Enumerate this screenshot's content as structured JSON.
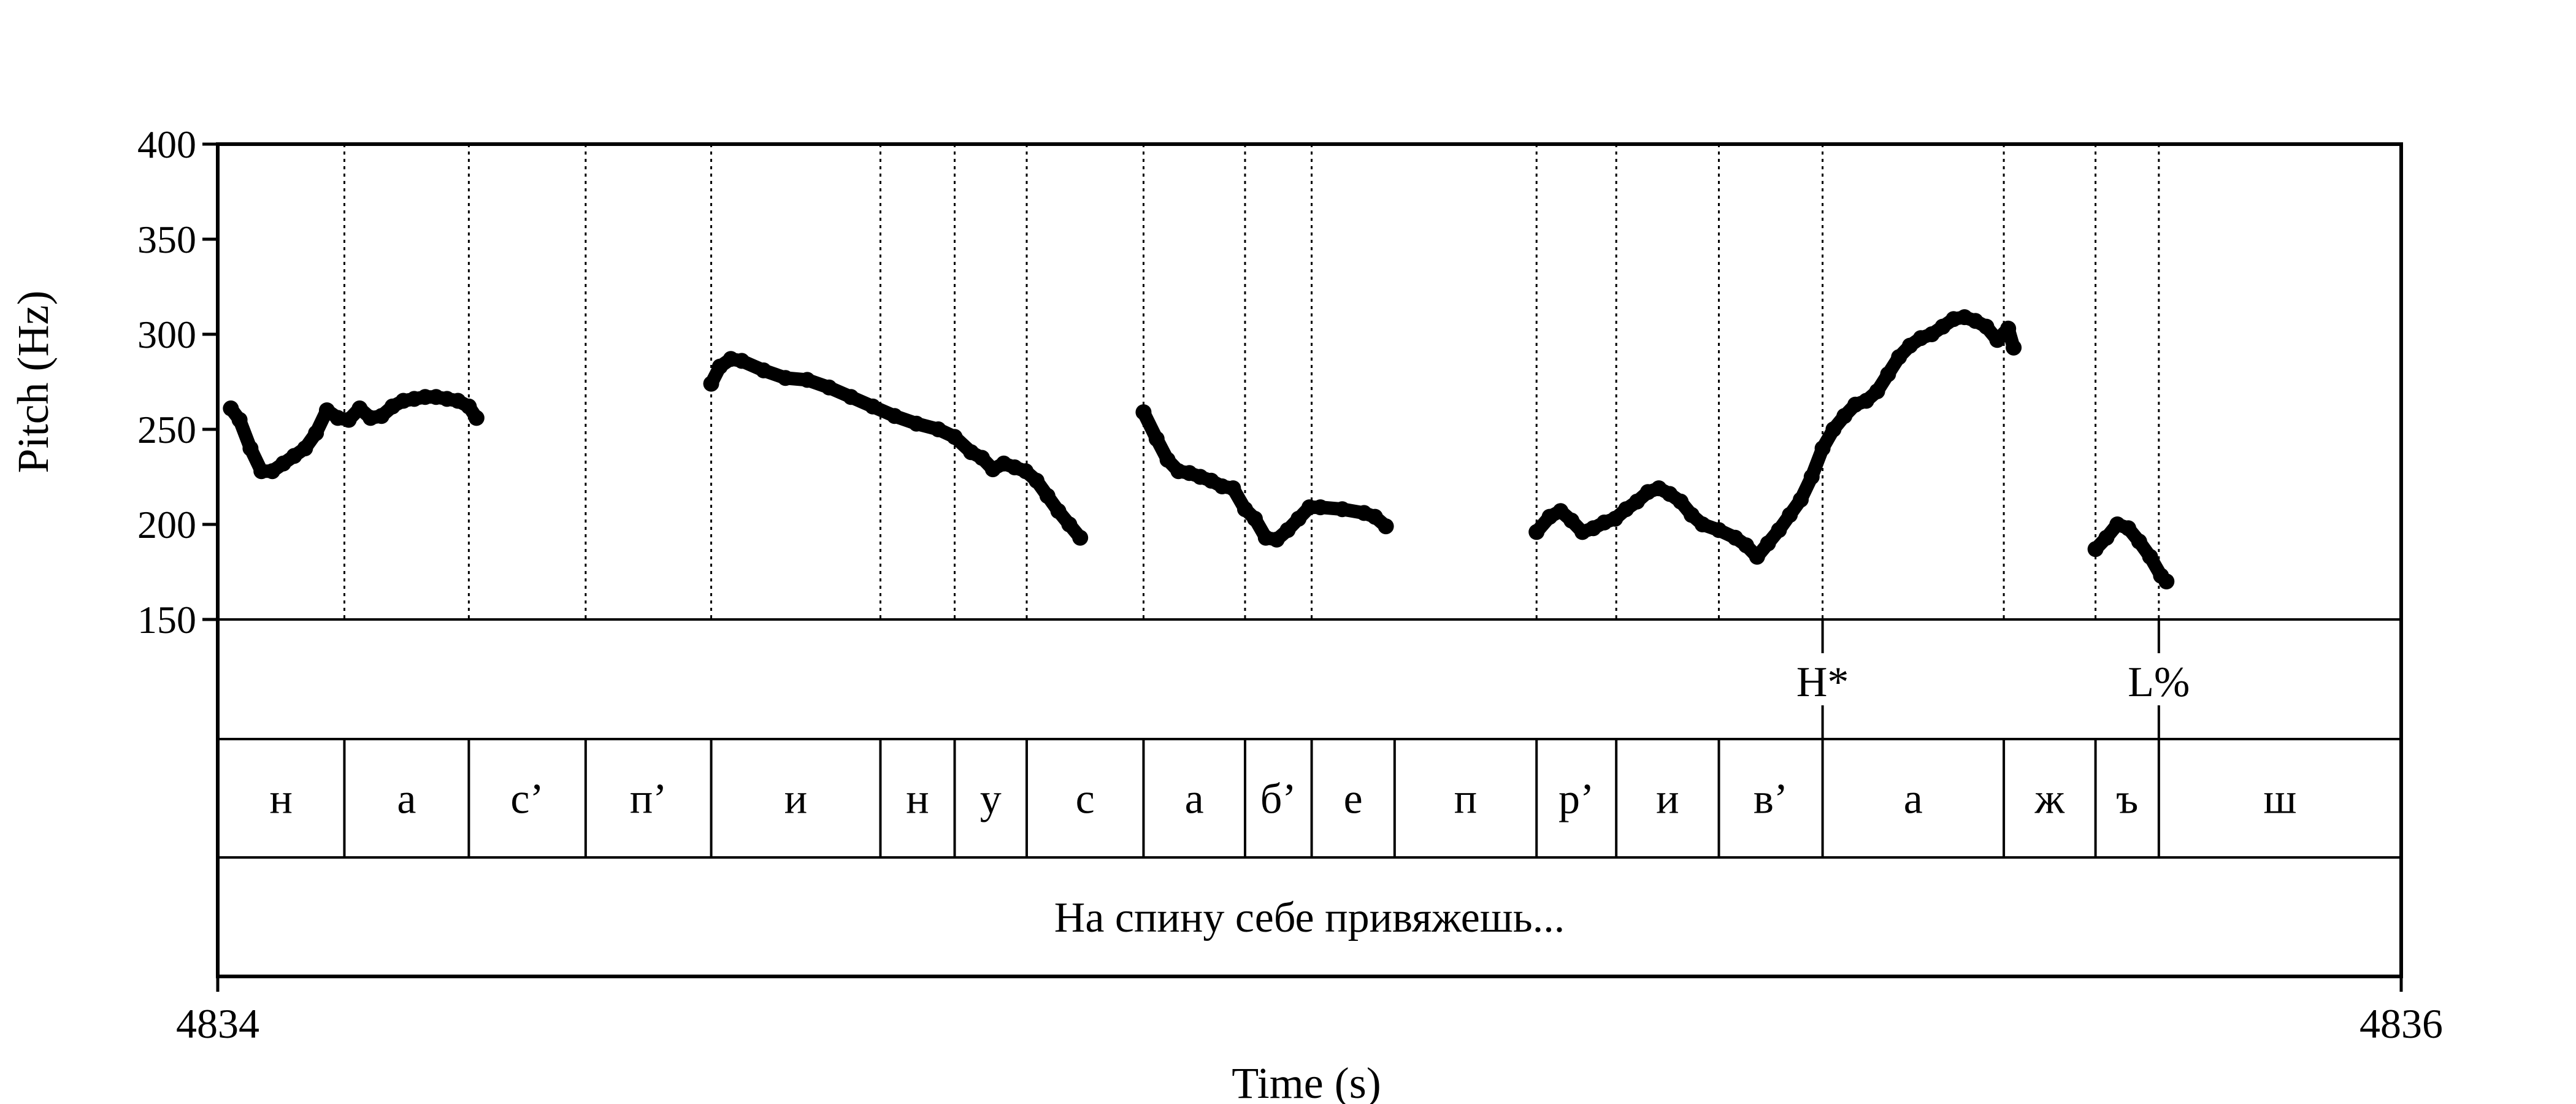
{
  "chart_data": {
    "type": "scatter",
    "ylabel": "Pitch (Hz)",
    "xlabel": "Time (s)",
    "ylim": [
      150,
      400
    ],
    "yticks": [
      "400",
      "350",
      "300",
      "250",
      "200",
      "150"
    ],
    "xlim": [
      4834,
      4836
    ],
    "xtick_labels": [
      "4834",
      "4836"
    ],
    "boundaries": [
      4834.116,
      4834.23,
      4834.337,
      4834.452,
      4834.607,
      4834.675,
      4834.741,
      4834.848,
      4834.941,
      4835.002,
      4835.208,
      4835.281,
      4835.375,
      4835.47,
      4835.636,
      4835.72,
      4835.778
    ],
    "pitch_segments": [
      [
        [
          4834.012,
          261
        ],
        [
          4834.02,
          255
        ],
        [
          4834.03,
          240
        ],
        [
          4834.04,
          228
        ],
        [
          4834.05,
          228
        ],
        [
          4834.06,
          232
        ],
        [
          4834.07,
          236
        ],
        [
          4834.08,
          240
        ],
        [
          4834.09,
          248
        ],
        [
          4834.1,
          260
        ],
        [
          4834.11,
          256
        ],
        [
          4834.12,
          255
        ],
        [
          4834.13,
          261
        ],
        [
          4834.14,
          256
        ],
        [
          4834.15,
          257
        ],
        [
          4834.16,
          262
        ],
        [
          4834.17,
          265
        ],
        [
          4834.18,
          266
        ],
        [
          4834.19,
          267
        ],
        [
          4834.2,
          267
        ],
        [
          4834.21,
          266
        ],
        [
          4834.22,
          265
        ],
        [
          4834.23,
          262
        ],
        [
          4834.237,
          256
        ]
      ],
      [
        [
          4834.452,
          274
        ],
        [
          4834.46,
          283
        ],
        [
          4834.47,
          287
        ],
        [
          4834.48,
          286
        ],
        [
          4834.5,
          281
        ],
        [
          4834.52,
          277
        ],
        [
          4834.54,
          276
        ],
        [
          4834.56,
          272
        ],
        [
          4834.58,
          267
        ],
        [
          4834.6,
          262
        ],
        [
          4834.62,
          257
        ],
        [
          4834.64,
          253
        ],
        [
          4834.66,
          250
        ],
        [
          4834.675,
          246
        ],
        [
          4834.69,
          238
        ],
        [
          4834.7,
          235
        ],
        [
          4834.71,
          229
        ],
        [
          4834.72,
          232
        ],
        [
          4834.73,
          230
        ],
        [
          4834.74,
          228
        ],
        [
          4834.75,
          223
        ],
        [
          4834.76,
          215
        ],
        [
          4834.77,
          207
        ],
        [
          4834.78,
          200
        ],
        [
          4834.79,
          193
        ]
      ],
      [
        [
          4834.848,
          259
        ],
        [
          4834.86,
          245
        ],
        [
          4834.87,
          234
        ],
        [
          4834.88,
          228
        ],
        [
          4834.89,
          227
        ],
        [
          4834.9,
          225
        ],
        [
          4834.91,
          223
        ],
        [
          4834.92,
          220
        ],
        [
          4834.93,
          219
        ],
        [
          4834.941,
          208
        ],
        [
          4834.95,
          203
        ],
        [
          4834.96,
          193
        ],
        [
          4834.97,
          192
        ],
        [
          4834.98,
          197
        ],
        [
          4834.99,
          203
        ],
        [
          4835.0,
          209
        ],
        [
          4835.01,
          209
        ],
        [
          4835.03,
          208
        ],
        [
          4835.05,
          206
        ],
        [
          4835.06,
          204
        ],
        [
          4835.07,
          199
        ]
      ],
      [
        [
          4835.208,
          196
        ],
        [
          4835.22,
          204
        ],
        [
          4835.23,
          207
        ],
        [
          4835.24,
          202
        ],
        [
          4835.25,
          196
        ],
        [
          4835.26,
          198
        ],
        [
          4835.27,
          201
        ],
        [
          4835.28,
          203
        ],
        [
          4835.29,
          208
        ],
        [
          4835.3,
          212
        ],
        [
          4835.31,
          217
        ],
        [
          4835.32,
          219
        ],
        [
          4835.33,
          216
        ],
        [
          4835.34,
          212
        ],
        [
          4835.35,
          205
        ],
        [
          4835.36,
          200
        ],
        [
          4835.375,
          197
        ],
        [
          4835.39,
          193
        ],
        [
          4835.4,
          189
        ],
        [
          4835.41,
          183
        ],
        [
          4835.42,
          190
        ],
        [
          4835.43,
          197
        ],
        [
          4835.44,
          205
        ],
        [
          4835.45,
          213
        ],
        [
          4835.46,
          225
        ],
        [
          4835.47,
          240
        ],
        [
          4835.48,
          250
        ],
        [
          4835.49,
          257
        ],
        [
          4835.5,
          263
        ],
        [
          4835.51,
          265
        ],
        [
          4835.52,
          270
        ],
        [
          4835.53,
          279
        ],
        [
          4835.54,
          288
        ],
        [
          4835.55,
          294
        ],
        [
          4835.56,
          298
        ],
        [
          4835.57,
          300
        ],
        [
          4835.58,
          304
        ],
        [
          4835.59,
          308
        ],
        [
          4835.6,
          309
        ],
        [
          4835.61,
          307
        ],
        [
          4835.62,
          304
        ],
        [
          4835.63,
          297
        ],
        [
          4835.64,
          303
        ],
        [
          4835.645,
          293
        ]
      ],
      [
        [
          4835.72,
          187
        ],
        [
          4835.73,
          193
        ],
        [
          4835.74,
          200
        ],
        [
          4835.75,
          198
        ],
        [
          4835.76,
          191
        ],
        [
          4835.77,
          183
        ],
        [
          4835.78,
          173
        ],
        [
          4835.785,
          170
        ]
      ]
    ]
  },
  "tones": [
    {
      "label": "H*",
      "t": 4835.47
    },
    {
      "label": "L%",
      "t": 4835.778
    }
  ],
  "segments": [
    {
      "label": "н",
      "start": 4834.0,
      "end": 4834.116
    },
    {
      "label": "а",
      "start": 4834.116,
      "end": 4834.23
    },
    {
      "label": "с’",
      "start": 4834.23,
      "end": 4834.337
    },
    {
      "label": "п’",
      "start": 4834.337,
      "end": 4834.452
    },
    {
      "label": "и",
      "start": 4834.452,
      "end": 4834.607
    },
    {
      "label": "н",
      "start": 4834.607,
      "end": 4834.675
    },
    {
      "label": "у",
      "start": 4834.675,
      "end": 4834.741
    },
    {
      "label": "с",
      "start": 4834.741,
      "end": 4834.848
    },
    {
      "label": "а",
      "start": 4834.848,
      "end": 4834.941
    },
    {
      "label": "б’",
      "start": 4834.941,
      "end": 4835.002
    },
    {
      "label": "е",
      "start": 4835.002,
      "end": 4835.078
    },
    {
      "label": "п",
      "start": 4835.078,
      "end": 4835.208
    },
    {
      "label": "р’",
      "start": 4835.208,
      "end": 4835.281
    },
    {
      "label": "и",
      "start": 4835.281,
      "end": 4835.375
    },
    {
      "label": "в’",
      "start": 4835.375,
      "end": 4835.47
    },
    {
      "label": "а",
      "start": 4835.47,
      "end": 4835.636
    },
    {
      "label": "ж",
      "start": 4835.636,
      "end": 4835.72
    },
    {
      "label": "ъ",
      "start": 4835.72,
      "end": 4835.778
    },
    {
      "label": "ш",
      "start": 4835.778,
      "end": 4836.0
    }
  ],
  "sentence": "На спину себе привяжешь..."
}
